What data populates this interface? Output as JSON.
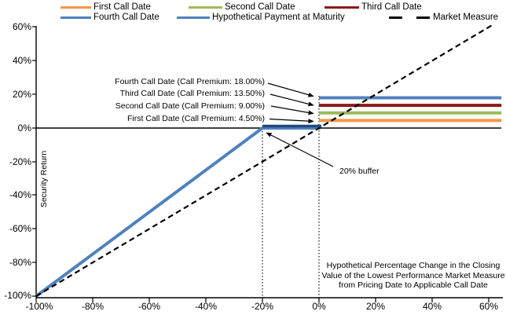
{
  "chart_data": {
    "type": "line",
    "title": "",
    "xlabel": "Hypothetical Percentage Change in the Closing Value of the Lowest Performance Market Measure from Pricing Date to Applicable Call Date",
    "xlabel_lines": [
      "Hypothetical Percentage Change in the Closing",
      "Value of the Lowest Performance Market Measure",
      "from Pricing Date to Applicable Call Date"
    ],
    "ylabel": "Security Return",
    "xlim": [
      -100,
      60
    ],
    "ylim": [
      -100,
      60
    ],
    "grid": false,
    "legend_position": "top",
    "x_ticks": [
      "-100%",
      "-80%",
      "-60%",
      "-40%",
      "-20%",
      "0%",
      "20%",
      "40%",
      "60%"
    ],
    "y_ticks": [
      "60%",
      "40%",
      "20%",
      "0%",
      "-20%",
      "-40%",
      "-60%",
      "-80%",
      "-100%"
    ],
    "series": [
      {
        "name": "First Call Date",
        "color": "#F79646",
        "width": 4,
        "points": [
          [
            0,
            4.5
          ],
          [
            64.5,
            4.5
          ]
        ]
      },
      {
        "name": "Second Call Date",
        "color": "#9BBB59",
        "width": 4,
        "points": [
          [
            0,
            9
          ],
          [
            64.5,
            9
          ]
        ]
      },
      {
        "name": "Third Call Date",
        "color": "#8B1A1A",
        "width": 4,
        "points": [
          [
            0,
            13.5
          ],
          [
            64.5,
            13.5
          ]
        ]
      },
      {
        "name": "Fourth Call Date",
        "color": "#4F81BD",
        "width": 4,
        "points": [
          [
            0,
            18
          ],
          [
            64.5,
            18
          ]
        ]
      },
      {
        "name": "Hypothetical Payment at Maturity",
        "color": "#4F81BD",
        "width": 4,
        "points": [
          [
            -100,
            -100
          ],
          [
            -20,
            0
          ],
          [
            0.5,
            0
          ]
        ]
      },
      {
        "name": "Market Measure",
        "color": "#000000",
        "width": 2.2,
        "style": "dashed",
        "points": [
          [
            -100,
            -100
          ],
          [
            62,
            62
          ]
        ]
      }
    ],
    "buffer_level": "-20%",
    "call_premiums": {
      "first": "4.50%",
      "second": "9.00%",
      "third": "13.50%",
      "fourth": "18.00%"
    }
  },
  "legend": {
    "first": "First Call Date",
    "second": "Second Call Date",
    "third": "Third Call Date",
    "fourth": "Fourth Call Date",
    "maturity": "Hypothetical Payment at Maturity",
    "market": "Market Measure"
  },
  "annotations": {
    "fourth": "Fourth Call Date (Call Premium: 18.00%)",
    "third": "Third Call Date (Call Premium: 13.50%)",
    "second": "Second Call Date (Call Premium: 9.00%)",
    "first": "First Call Date (Call Premium: 4.50%)",
    "buffer": "20% buffer"
  },
  "colors": {
    "first_call": "#F79646",
    "second_call": "#9BBB59",
    "third_call": "#8B1A1A",
    "fourth_call": "#4F81BD",
    "maturity": "#4F81BD",
    "maturity_flat": "#1F497D",
    "market_measure": "#000000"
  }
}
